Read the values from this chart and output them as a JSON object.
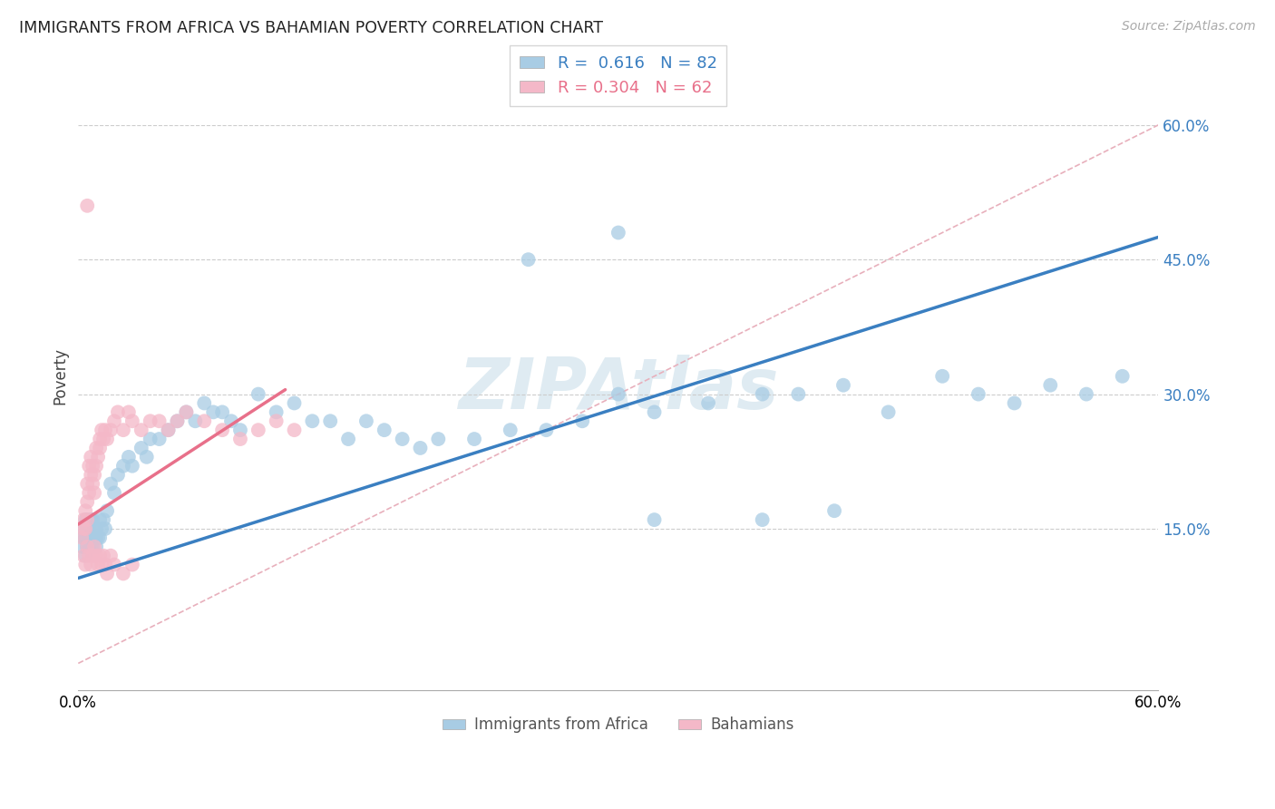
{
  "title": "IMMIGRANTS FROM AFRICA VS BAHAMIAN POVERTY CORRELATION CHART",
  "source": "Source: ZipAtlas.com",
  "ylabel": "Poverty",
  "xlim": [
    0,
    0.6
  ],
  "ylim": [
    -0.03,
    0.67
  ],
  "y_ticks": [
    0.15,
    0.3,
    0.45,
    0.6
  ],
  "y_tick_labels": [
    "15.0%",
    "30.0%",
    "45.0%",
    "60.0%"
  ],
  "legend_label1": "Immigrants from Africa",
  "legend_label2": "Bahamians",
  "r1": "0.616",
  "n1": "82",
  "r2": "0.304",
  "n2": "62",
  "blue_color": "#a8cce4",
  "pink_color": "#f4b8c8",
  "blue_line_color": "#3a7fc1",
  "pink_line_color": "#e8708a",
  "diag_color": "#e8b0bc",
  "watermark": "ZIPAtlas",
  "blue_line": [
    0.0,
    0.6,
    0.095,
    0.475
  ],
  "pink_line": [
    0.0,
    0.115,
    0.155,
    0.305
  ],
  "diag_line": [
    0.0,
    0.6,
    0.0,
    0.6
  ],
  "blue_x": [
    0.002,
    0.003,
    0.003,
    0.004,
    0.004,
    0.004,
    0.005,
    0.005,
    0.005,
    0.005,
    0.006,
    0.006,
    0.006,
    0.007,
    0.007,
    0.008,
    0.008,
    0.008,
    0.009,
    0.009,
    0.01,
    0.01,
    0.01,
    0.011,
    0.012,
    0.012,
    0.013,
    0.014,
    0.015,
    0.016,
    0.018,
    0.02,
    0.022,
    0.025,
    0.028,
    0.03,
    0.035,
    0.038,
    0.04,
    0.045,
    0.05,
    0.055,
    0.06,
    0.065,
    0.07,
    0.075,
    0.08,
    0.085,
    0.09,
    0.1,
    0.11,
    0.12,
    0.13,
    0.14,
    0.15,
    0.16,
    0.17,
    0.18,
    0.19,
    0.2,
    0.22,
    0.24,
    0.26,
    0.28,
    0.3,
    0.32,
    0.35,
    0.38,
    0.4,
    0.425,
    0.45,
    0.48,
    0.5,
    0.52,
    0.54,
    0.56,
    0.58,
    0.32,
    0.38,
    0.42,
    0.25,
    0.3
  ],
  "blue_y": [
    0.13,
    0.14,
    0.15,
    0.12,
    0.14,
    0.16,
    0.13,
    0.14,
    0.15,
    0.16,
    0.13,
    0.14,
    0.15,
    0.13,
    0.16,
    0.13,
    0.14,
    0.16,
    0.14,
    0.15,
    0.13,
    0.14,
    0.15,
    0.14,
    0.14,
    0.16,
    0.15,
    0.16,
    0.15,
    0.17,
    0.2,
    0.19,
    0.21,
    0.22,
    0.23,
    0.22,
    0.24,
    0.23,
    0.25,
    0.25,
    0.26,
    0.27,
    0.28,
    0.27,
    0.29,
    0.28,
    0.28,
    0.27,
    0.26,
    0.3,
    0.28,
    0.29,
    0.27,
    0.27,
    0.25,
    0.27,
    0.26,
    0.25,
    0.24,
    0.25,
    0.25,
    0.26,
    0.26,
    0.27,
    0.3,
    0.28,
    0.29,
    0.3,
    0.3,
    0.31,
    0.28,
    0.32,
    0.3,
    0.29,
    0.31,
    0.3,
    0.32,
    0.16,
    0.16,
    0.17,
    0.45,
    0.48
  ],
  "pink_x": [
    0.002,
    0.003,
    0.003,
    0.004,
    0.004,
    0.005,
    0.005,
    0.005,
    0.006,
    0.006,
    0.007,
    0.007,
    0.008,
    0.008,
    0.009,
    0.009,
    0.01,
    0.01,
    0.011,
    0.012,
    0.012,
    0.013,
    0.014,
    0.015,
    0.016,
    0.018,
    0.02,
    0.022,
    0.025,
    0.028,
    0.03,
    0.035,
    0.04,
    0.045,
    0.05,
    0.055,
    0.06,
    0.07,
    0.08,
    0.09,
    0.1,
    0.11,
    0.12,
    0.003,
    0.004,
    0.005,
    0.006,
    0.007,
    0.008,
    0.009,
    0.01,
    0.011,
    0.012,
    0.013,
    0.014,
    0.015,
    0.016,
    0.018,
    0.02,
    0.025,
    0.03,
    0.005
  ],
  "pink_y": [
    0.14,
    0.15,
    0.16,
    0.15,
    0.17,
    0.16,
    0.18,
    0.2,
    0.19,
    0.22,
    0.21,
    0.23,
    0.2,
    0.22,
    0.19,
    0.21,
    0.22,
    0.24,
    0.23,
    0.24,
    0.25,
    0.26,
    0.25,
    0.26,
    0.25,
    0.26,
    0.27,
    0.28,
    0.26,
    0.28,
    0.27,
    0.26,
    0.27,
    0.27,
    0.26,
    0.27,
    0.28,
    0.27,
    0.26,
    0.25,
    0.26,
    0.27,
    0.26,
    0.12,
    0.11,
    0.13,
    0.12,
    0.11,
    0.12,
    0.13,
    0.12,
    0.11,
    0.12,
    0.11,
    0.12,
    0.11,
    0.1,
    0.12,
    0.11,
    0.1,
    0.11,
    0.51
  ]
}
